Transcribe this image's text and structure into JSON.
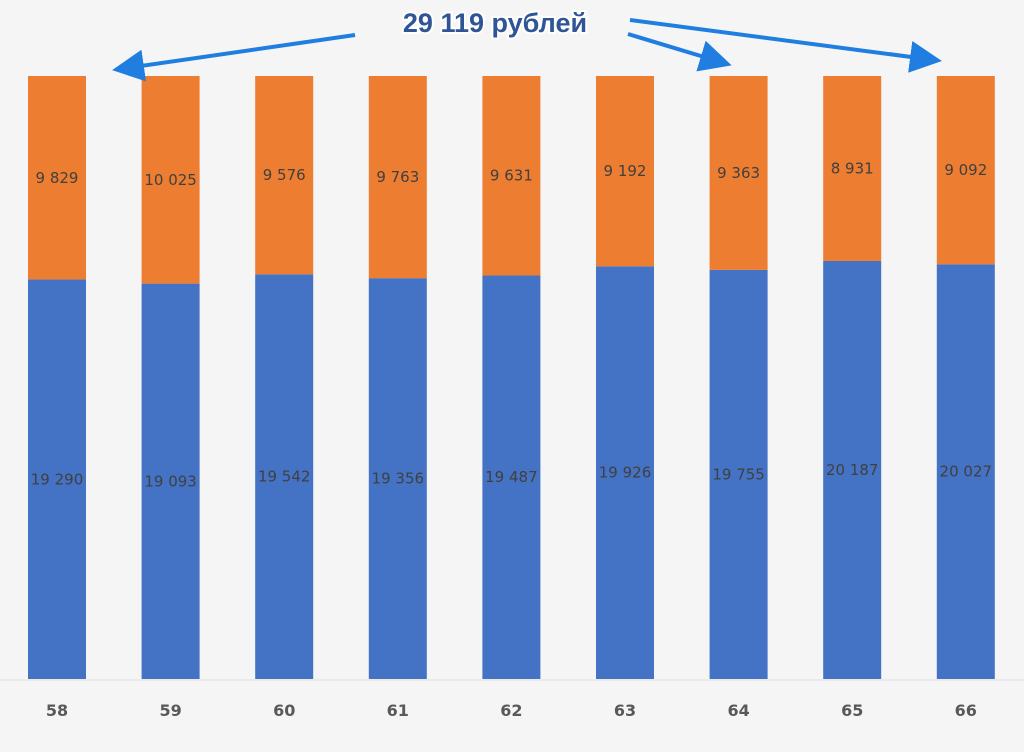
{
  "chart_data": {
    "type": "bar",
    "stacked": true,
    "title": "",
    "xlabel": "",
    "ylabel": "",
    "categories": [
      "58",
      "59",
      "60",
      "61",
      "62",
      "63",
      "64",
      "65",
      "66"
    ],
    "series": [
      {
        "name": "bottom",
        "color": "#4472c4",
        "values": [
          19290,
          19093,
          19542,
          19356,
          19487,
          19926,
          19755,
          20187,
          20027
        ],
        "labels": [
          "19 290",
          "19 093",
          "19 542",
          "19 356",
          "19 487",
          "19 926",
          "19 755",
          "20 187",
          "20 027"
        ]
      },
      {
        "name": "top",
        "color": "#ed7d31",
        "values": [
          9829,
          10025,
          9576,
          9763,
          9631,
          9192,
          9363,
          8931,
          9092
        ],
        "labels": [
          "9 829",
          "10 025",
          "9 576",
          "9 763",
          "9 631",
          "9 192",
          "9 363",
          "8 931",
          "9 092"
        ]
      }
    ],
    "ylim": [
      0,
      29119
    ],
    "grid": false,
    "legend": "none",
    "annotation": {
      "text": "29 119 рублей",
      "color": "#2f5597",
      "arrow_color": "#1f7ee0"
    }
  }
}
